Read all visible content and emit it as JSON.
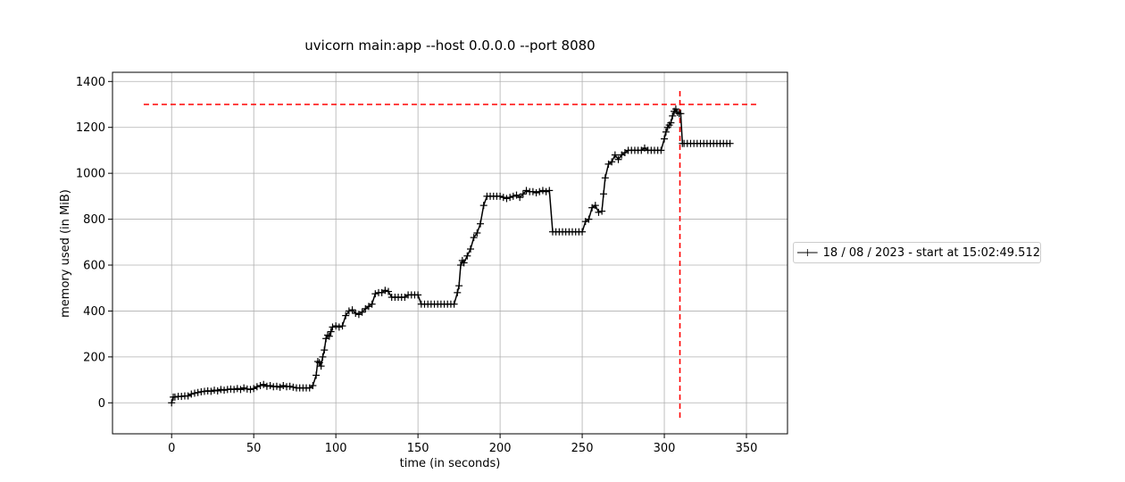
{
  "chart_data": {
    "type": "line",
    "title": "uvicorn main:app --host 0.0.0.0 --port 8080",
    "xlabel": "time (in seconds)",
    "ylabel": "memory used (in MiB)",
    "xlim": [
      -36,
      375
    ],
    "ylim": [
      -135,
      1440
    ],
    "xticks": [
      0,
      50,
      100,
      150,
      200,
      250,
      300,
      350
    ],
    "yticks": [
      0,
      200,
      400,
      600,
      800,
      1000,
      1200,
      1400
    ],
    "grid": true,
    "legend_position": "right",
    "series": [
      {
        "name": "18 / 08 / 2023 - start at 15:02:49.512",
        "color": "#000000",
        "marker": "+",
        "x": [
          0,
          1,
          2,
          4,
          6,
          8,
          10,
          12,
          14,
          16,
          18,
          20,
          22,
          24,
          26,
          28,
          30,
          32,
          34,
          36,
          38,
          40,
          42,
          44,
          46,
          48,
          50,
          52,
          54,
          56,
          58,
          60,
          62,
          64,
          66,
          68,
          70,
          72,
          74,
          76,
          78,
          80,
          82,
          84,
          86,
          88,
          89,
          90,
          91,
          92,
          93,
          94,
          95,
          96,
          97,
          98,
          100,
          102,
          104,
          106,
          108,
          110,
          112,
          114,
          116,
          118,
          120,
          122,
          124,
          126,
          128,
          130,
          132,
          134,
          136,
          138,
          140,
          142,
          144,
          146,
          148,
          150,
          152,
          154,
          156,
          158,
          160,
          162,
          164,
          166,
          168,
          170,
          172,
          174,
          175,
          176,
          177,
          178,
          180,
          182,
          184,
          186,
          188,
          190,
          192,
          194,
          196,
          198,
          200,
          202,
          204,
          206,
          208,
          210,
          212,
          214,
          216,
          218,
          220,
          222,
          224,
          226,
          228,
          230,
          232,
          234,
          236,
          238,
          240,
          242,
          244,
          246,
          248,
          250,
          252,
          254,
          256,
          258,
          260,
          262,
          263,
          264,
          266,
          268,
          270,
          272,
          274,
          276,
          278,
          280,
          282,
          284,
          286,
          288,
          290,
          292,
          294,
          296,
          298,
          300,
          301,
          302,
          303,
          304,
          305,
          306,
          307,
          308,
          309,
          310,
          311,
          312,
          314,
          316,
          318,
          320,
          322,
          324,
          326,
          328,
          330,
          332,
          334,
          336,
          338,
          340
        ],
        "y": [
          0,
          25,
          25,
          28,
          28,
          30,
          30,
          38,
          42,
          45,
          48,
          50,
          52,
          50,
          55,
          52,
          58,
          55,
          58,
          60,
          58,
          62,
          58,
          65,
          60,
          58,
          62,
          70,
          75,
          80,
          72,
          75,
          70,
          72,
          68,
          75,
          70,
          72,
          68,
          65,
          65,
          65,
          65,
          65,
          75,
          120,
          180,
          175,
          160,
          200,
          230,
          280,
          295,
          290,
          310,
          330,
          335,
          330,
          335,
          380,
          400,
          405,
          390,
          385,
          395,
          410,
          420,
          430,
          475,
          480,
          480,
          490,
          485,
          460,
          460,
          460,
          460,
          460,
          470,
          470,
          470,
          470,
          430,
          430,
          430,
          430,
          430,
          430,
          430,
          430,
          430,
          430,
          430,
          480,
          510,
          600,
          620,
          610,
          640,
          670,
          720,
          740,
          780,
          860,
          900,
          900,
          900,
          900,
          900,
          895,
          890,
          895,
          900,
          905,
          895,
          910,
          925,
          920,
          920,
          915,
          920,
          925,
          920,
          925,
          745,
          745,
          745,
          745,
          745,
          745,
          745,
          745,
          745,
          745,
          790,
          800,
          850,
          860,
          830,
          835,
          910,
          980,
          1040,
          1050,
          1080,
          1060,
          1080,
          1090,
          1100,
          1100,
          1100,
          1100,
          1100,
          1110,
          1100,
          1100,
          1100,
          1100,
          1100,
          1150,
          1180,
          1200,
          1210,
          1220,
          1250,
          1270,
          1280,
          1265,
          1260,
          1260,
          1130,
          1130,
          1130,
          1130,
          1130,
          1130,
          1130,
          1130,
          1130,
          1130,
          1130,
          1130,
          1130,
          1130,
          1130,
          1130
        ]
      }
    ],
    "reference_lines": [
      {
        "orientation": "horizontal",
        "value": 1300,
        "from": -17,
        "to": 358,
        "color": "#ff0000",
        "style": "dashed"
      },
      {
        "orientation": "vertical",
        "value": 309.5,
        "from": -65,
        "to": 1365,
        "color": "#ff0000",
        "style": "dashed"
      }
    ]
  }
}
